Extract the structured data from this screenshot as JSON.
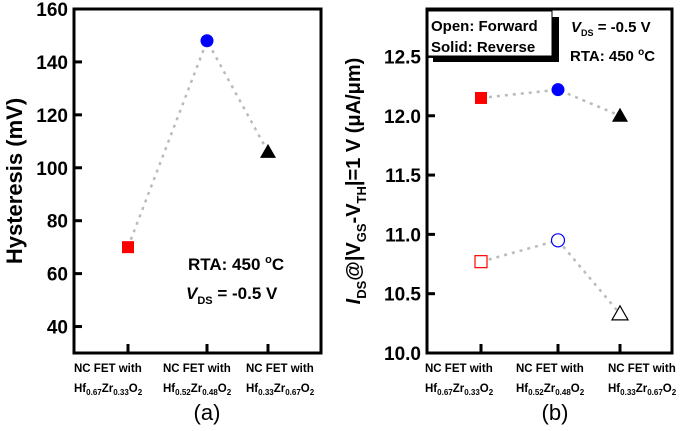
{
  "chart_data": [
    {
      "type": "scatter",
      "panel_label": "(a)",
      "ylabel": "Hysteresis (mV)",
      "ylim": [
        30,
        160
      ],
      "yticks": [
        40,
        60,
        80,
        100,
        120,
        140,
        160
      ],
      "categories": [
        {
          "line1": "NC FET with",
          "hf": "0.67",
          "zr": "0.33"
        },
        {
          "line1": "NC FET with",
          "hf": "0.52",
          "zr": "0.48"
        },
        {
          "line1": "NC FET with",
          "hf": "0.33",
          "zr": "0.67"
        }
      ],
      "series": [
        {
          "values": [
            70,
            148,
            106
          ],
          "markers": [
            "square",
            "circle",
            "triangle"
          ],
          "colors": [
            "#ff0000",
            "#0000ff",
            "#000000"
          ],
          "filled": true
        }
      ],
      "connector": {
        "style": "dotted",
        "color": "#bbbbbb"
      },
      "annotations": [
        "RTA: 450 °C",
        "V_DS = -0.5 V"
      ],
      "grid": false
    },
    {
      "type": "scatter",
      "panel_label": "(b)",
      "ylabel": "I_DS@|V_GS-V_TH|=1 V (μA/μm)",
      "ylim": [
        10.0,
        12.9
      ],
      "yticks": [
        "10.0",
        "10.5",
        "11.0",
        "11.5",
        "12.0",
        "12.5"
      ],
      "categories": [
        {
          "line1": "NC FET with",
          "hf": "0.67",
          "zr": "0.33"
        },
        {
          "line1": "NC FET with",
          "hf": "0.52",
          "zr": "0.48"
        },
        {
          "line1": "NC FET with",
          "hf": "0.33",
          "zr": "0.67"
        }
      ],
      "series": [
        {
          "values": [
            12.15,
            12.22,
            12.0
          ],
          "markers": [
            "square",
            "circle",
            "triangle"
          ],
          "colors": [
            "#ff0000",
            "#0000ff",
            "#000000"
          ],
          "filled": true
        },
        {
          "values": [
            10.77,
            10.95,
            10.33
          ],
          "markers": [
            "square",
            "circle",
            "triangle"
          ],
          "colors": [
            "#ff0000",
            "#0000ff",
            "#000000"
          ],
          "filled": false
        }
      ],
      "connector": {
        "style": "dotted",
        "color": "#bbbbbb"
      },
      "legend": {
        "line1": "Open: Forward",
        "line2": "Solid: Reverse",
        "placement": "top-left"
      },
      "annotations": [
        "V_DS = -0.5 V",
        "RTA: 450 °C"
      ],
      "grid": false
    }
  ],
  "text": {
    "a_rta": "RTA: 450 ",
    "a_vds_v": "V",
    "a_vds_sub": "DS",
    "a_vds_rest": " = -0.5 V",
    "b_vds_v": "V",
    "b_vds_sub": "DS",
    "b_vds_rest": " = -0.5 V",
    "b_rta": "RTA: 450 ",
    "deg_o": "o",
    "deg_c": "C",
    "a_ylabel": "Hysteresis (mV)",
    "b_ylabel_I": "I",
    "b_ylabel_DS": "DS",
    "b_ylabel_mid": "@|V",
    "b_ylabel_GS": "GS",
    "b_ylabel_dash": "-V",
    "b_ylabel_TH": "TH",
    "b_ylabel_end": "|=1 V (μA/μm)",
    "hf": "Hf",
    "zr": "Zr",
    "o": "O",
    "two": "2"
  }
}
